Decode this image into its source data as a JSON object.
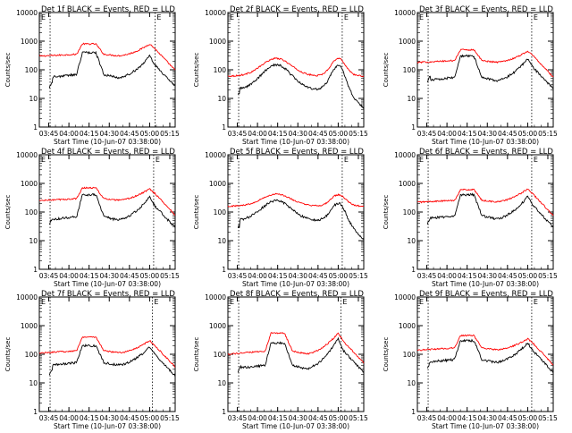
{
  "chart_data": {
    "type": "line",
    "layout": "3x3 grid of log-scale line plots",
    "ylabel": "Counts/sec",
    "xlabel": "Start Time (10-Jun-07 03:38:00)",
    "yscale": "log",
    "ylim": [
      1,
      10000
    ],
    "ytick_labels": [
      "1",
      "10",
      "100",
      "1000",
      "10000"
    ],
    "xlim_minutes_after_start": [
      0,
      101
    ],
    "xtick_labels": [
      "03:45",
      "04:00",
      "04:15",
      "04:30",
      "04:45",
      "05:00",
      "05:15"
    ],
    "marker_labels": [
      "E",
      "E"
    ],
    "series_colors": {
      "events": "#000000",
      "lld": "#ff0000"
    },
    "panels": [
      {
        "title": "Det 1f BLACK = Events, RED = LLD",
        "vlines": [
          "03:46",
          "05:04"
        ],
        "events": {
          "start": 25,
          "base": 50,
          "rise": 48,
          "peak1": 400,
          "hump": 0,
          "hump2": 300
        },
        "lld": {
          "base": 300,
          "peak1": 800,
          "hump": 0,
          "hump2": 800
        }
      },
      {
        "title": "Det 2f BLACK = Events, RED = LLD",
        "vlines": [
          "03:46",
          "05:03"
        ],
        "events": {
          "start": 15,
          "base": 20,
          "rise": 0,
          "peak1": 150,
          "hump": 1,
          "hump2": 140
        },
        "lld": {
          "base": 60,
          "peak1": 250,
          "hump": 1,
          "hump2": 250
        }
      },
      {
        "title": "Det 3f BLACK = Events, RED = LLD",
        "vlines": [
          "03:46",
          "05:03"
        ],
        "events": {
          "start": 40,
          "base": 40,
          "rise": 48,
          "peak1": 300,
          "hump": 0,
          "hump2": 250
        },
        "lld": {
          "base": 180,
          "peak1": 500,
          "hump": 0,
          "hump2": 450
        }
      },
      {
        "title": "Det 4f BLACK = Events, RED = LLD",
        "vlines": [
          "03:46",
          "05:03"
        ],
        "events": {
          "start": 40,
          "base": 50,
          "rise": 48,
          "peak1": 400,
          "hump": 0,
          "hump2": 350
        },
        "lld": {
          "base": 250,
          "peak1": 700,
          "hump": 0,
          "hump2": 650
        }
      },
      {
        "title": "Det 5f BLACK = Events, RED = LLD",
        "vlines": [
          "03:46",
          "05:03"
        ],
        "events": {
          "start": 30,
          "base": 50,
          "rise": 0,
          "peak1": 250,
          "hump": 1,
          "hump2": 200
        },
        "lld": {
          "base": 160,
          "peak1": 420,
          "hump": 1,
          "hump2": 400
        }
      },
      {
        "title": "Det 6f BLACK = Events, RED = LLD",
        "vlines": [
          "03:46",
          "05:03"
        ],
        "events": {
          "start": 40,
          "base": 55,
          "rise": 48,
          "peak1": 400,
          "hump": 0,
          "hump2": 350
        },
        "lld": {
          "base": 220,
          "peak1": 600,
          "hump": 0,
          "hump2": 650
        }
      },
      {
        "title": "Det 7f BLACK = Events, RED = LLD",
        "vlines": [
          "03:46",
          "05:02"
        ],
        "events": {
          "start": 20,
          "base": 40,
          "rise": 48,
          "peak1": 200,
          "hump": 0,
          "hump2": 180
        },
        "lld": {
          "base": 110,
          "peak1": 400,
          "hump": 0,
          "hump2": 300
        }
      },
      {
        "title": "Det 8f BLACK = Events, RED = LLD",
        "vlines": [
          "03:46",
          "05:02"
        ],
        "events": {
          "start": 25,
          "base": 30,
          "rise": 48,
          "peak1": 250,
          "hump": 0,
          "hump2": 350
        },
        "lld": {
          "base": 100,
          "peak1": 550,
          "hump": 0,
          "hump2": 550
        }
      },
      {
        "title": "Det 9f BLACK = Events, RED = LLD",
        "vlines": [
          "03:46",
          "05:03"
        ],
        "events": {
          "start": 35,
          "base": 50,
          "rise": 48,
          "peak1": 300,
          "hump": 0,
          "hump2": 250
        },
        "lld": {
          "base": 140,
          "peak1": 450,
          "hump": 0,
          "hump2": 350
        }
      }
    ]
  }
}
